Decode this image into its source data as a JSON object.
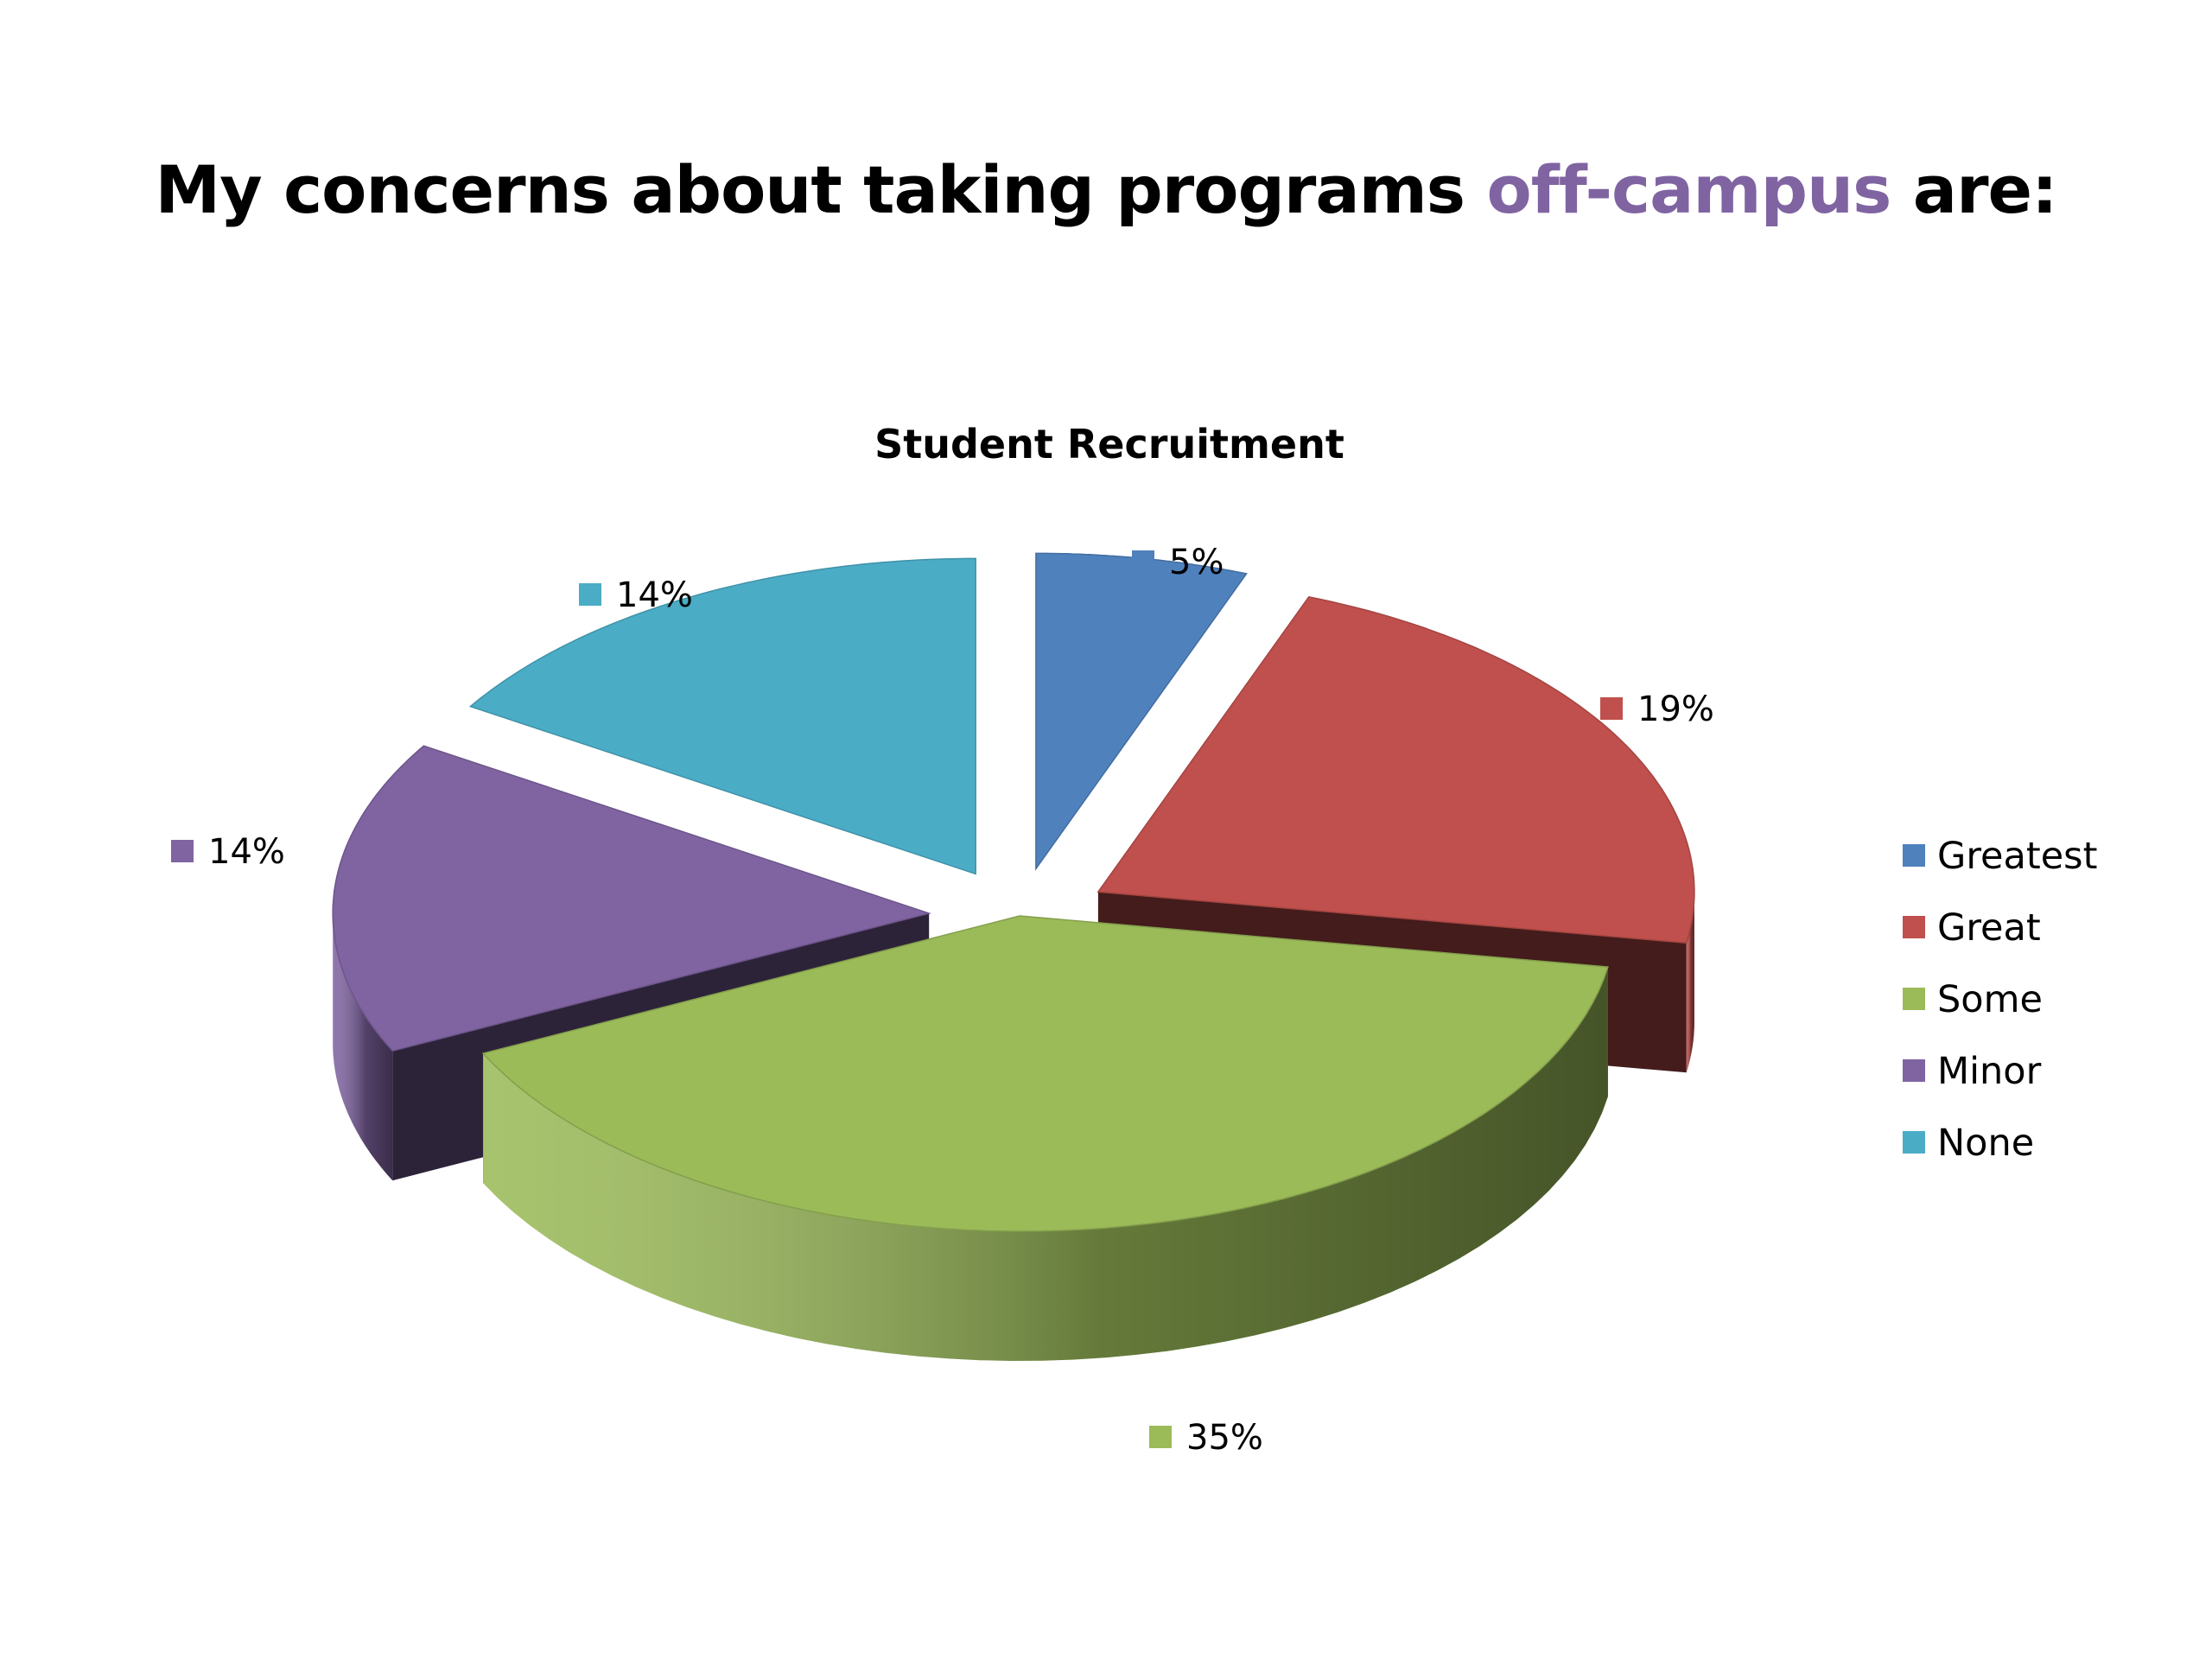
{
  "slide": {
    "title_before": "My concerns about taking programs ",
    "title_highlight": "off-campus",
    "title_after": " are:",
    "highlight_color": "#8064A2"
  },
  "chart_data": {
    "type": "pie",
    "style": "3d-exploded",
    "title": "Student Recruitment",
    "categories": [
      "Greatest",
      "Great",
      "Some",
      "Minor",
      "None"
    ],
    "values": [
      5,
      19,
      35,
      14,
      14
    ],
    "data_labels": [
      "5%",
      "19%",
      "35%",
      "14%",
      "14%"
    ],
    "colors": [
      "#4F81BD",
      "#C0504D",
      "#9BBB59",
      "#8064A2",
      "#4BACC6"
    ],
    "legend_position": "right"
  }
}
